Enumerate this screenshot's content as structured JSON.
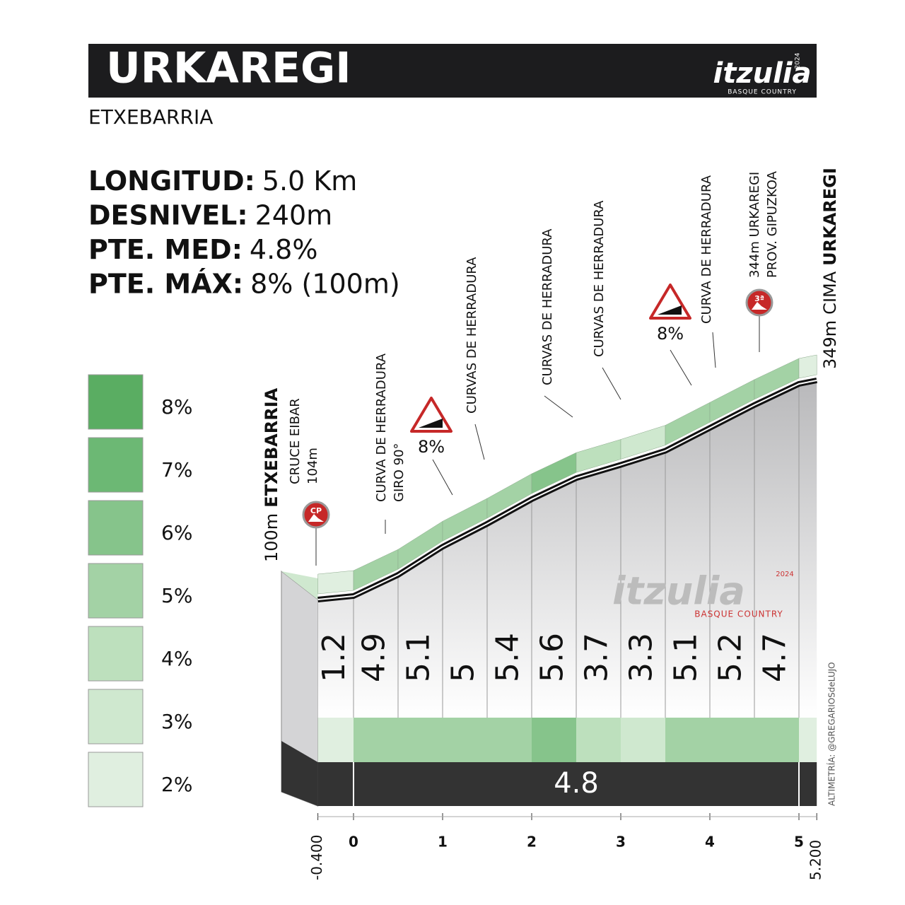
{
  "header": {
    "title": "URKAREGI",
    "subtitle": "ETXEBARRIA",
    "logo": {
      "name": "itzulia",
      "year": "2024",
      "tagline": "BASQUE COUNTRY"
    }
  },
  "stats": [
    {
      "label": "LONGITUD:",
      "value": "5.0 Km"
    },
    {
      "label": "DESNIVEL:",
      "value": "240m"
    },
    {
      "label": "PTE. MED:",
      "value": "4.8%"
    },
    {
      "label": "PTE. MÁX:",
      "value": "8% (100m)"
    }
  ],
  "legend": [
    {
      "label": "8%",
      "color": "#5aad62"
    },
    {
      "label": "7%",
      "color": "#6cb874"
    },
    {
      "label": "6%",
      "color": "#86c48b"
    },
    {
      "label": "5%",
      "color": "#a3d2a5"
    },
    {
      "label": "4%",
      "color": "#bde0bd"
    },
    {
      "label": "3%",
      "color": "#cfe8cf"
    },
    {
      "label": "2%",
      "color": "#e0efe0"
    }
  ],
  "chart_data": {
    "type": "area",
    "start": {
      "altitude": "100m",
      "name": "ETXEBARRIA"
    },
    "finish": {
      "altitude": "349m",
      "prefix": "CIMA",
      "name": "URKAREGI"
    },
    "x": [
      -0.4,
      0,
      0.5,
      1,
      1.5,
      2,
      2.5,
      3,
      3.5,
      4,
      4.5,
      5,
      5.2
    ],
    "values": [
      100,
      104,
      128,
      160,
      186,
      214,
      238,
      253,
      269,
      295,
      321,
      345,
      349
    ],
    "xlim": [
      -0.4,
      5.2
    ],
    "ylim": [
      100,
      349
    ],
    "xticks": [
      {
        "value": -0.4,
        "label": "-0.400"
      },
      0,
      1,
      2,
      3,
      4,
      5,
      {
        "value": 5.2,
        "label": "5.200"
      }
    ],
    "gradient_bins": [
      -0.4,
      0,
      0.5,
      1,
      1.5,
      2,
      2.5,
      3,
      3.5,
      4,
      4.5,
      5
    ],
    "gradients": [
      1.2,
      4.9,
      5.1,
      5.0,
      5.4,
      5.6,
      3.7,
      3.3,
      5.1,
      5.2,
      4.7
    ],
    "average_gradient": 4.8,
    "annotations": [
      {
        "lines": [
          "CRUCE EIBAR",
          "104m"
        ],
        "badge": "CP"
      },
      {
        "lines": [
          "CURVA DE HERRADURA",
          "GIRO 90°"
        ]
      },
      {
        "sign": "8%"
      },
      {
        "lines": [
          "CURVAS DE HERRADURA"
        ]
      },
      {
        "lines": [
          "CURVAS DE HERRADURA"
        ]
      },
      {
        "lines": [
          "CURVAS DE HERRADURA"
        ]
      },
      {
        "sign": "8%"
      },
      {
        "lines": [
          "CURVA DE HERRADURA"
        ]
      },
      {
        "lines": [
          "344m URKAREGI",
          "PROV. GIPUZKOA"
        ],
        "badge": "3ª"
      }
    ],
    "credit": "ALTIMETRÍA: @GREGARIOSdeLUJO"
  }
}
